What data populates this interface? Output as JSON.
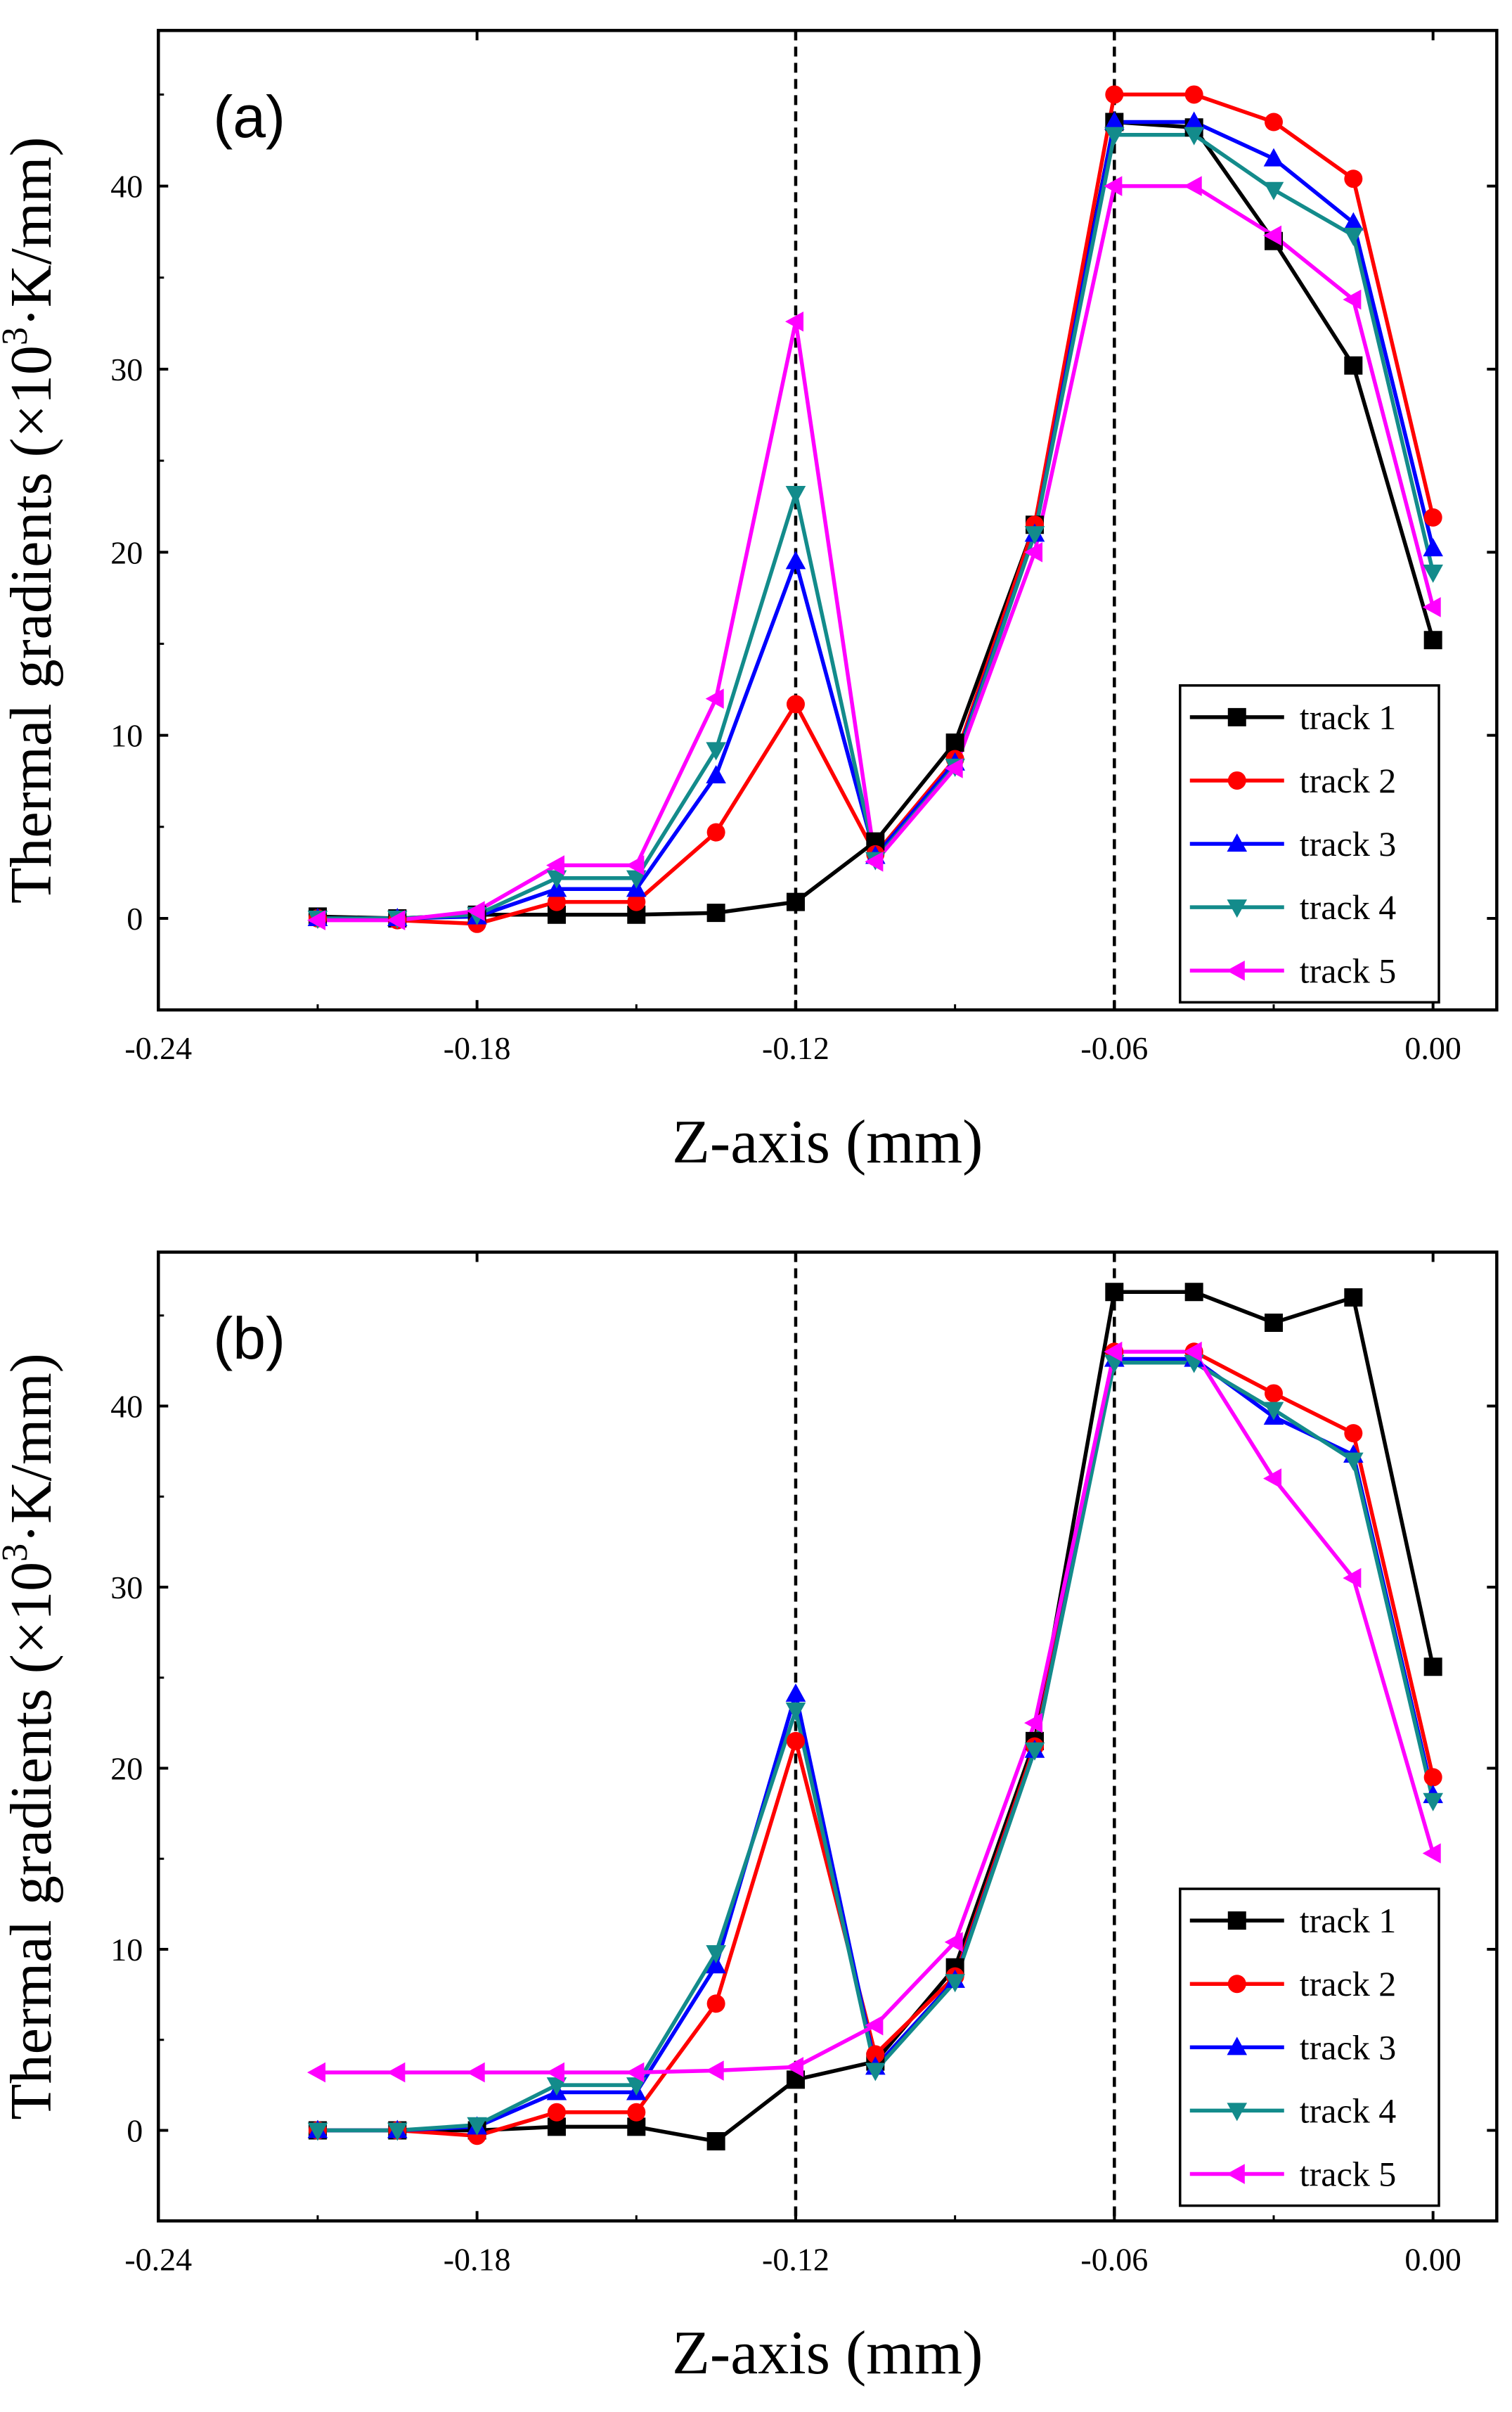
{
  "chart_data": [
    {
      "type": "line",
      "panel_label": "(a)",
      "xlabel": "Z-axis (mm)",
      "ylabel_main": "Thermal gradients (×10",
      "ylabel_sup": "3",
      "ylabel_tail": "·K/mm)",
      "xlim": [
        -0.24,
        0.012
      ],
      "ylim": [
        -5,
        48.5
      ],
      "x_ticks": [
        -0.24,
        -0.18,
        -0.12,
        -0.06,
        0.0
      ],
      "x_tick_labels": [
        "-0.24",
        "-0.18",
        "-0.12",
        "-0.06",
        "0.00"
      ],
      "y_ticks": [
        0,
        10,
        20,
        30,
        40
      ],
      "y_tick_labels": [
        "0",
        "10",
        "20",
        "30",
        "40"
      ],
      "vlines": [
        -0.12,
        -0.06
      ],
      "legend_position": "bottom-right",
      "x": [
        -0.21,
        -0.195,
        -0.18,
        -0.165,
        -0.15,
        -0.135,
        -0.12,
        -0.105,
        -0.09,
        -0.075,
        -0.06,
        -0.045,
        -0.03,
        -0.015,
        0.0
      ],
      "series": [
        {
          "name": "track 1",
          "color": "#000000",
          "marker": "square",
          "values": [
            0.1,
            0.0,
            0.2,
            0.2,
            0.2,
            0.3,
            0.9,
            4.2,
            9.6,
            21.5,
            43.5,
            43.2,
            37.0,
            30.2,
            15.2
          ]
        },
        {
          "name": "track 2",
          "color": "#ff0000",
          "marker": "circle",
          "values": [
            0.0,
            -0.1,
            -0.3,
            0.9,
            0.9,
            4.7,
            11.7,
            3.5,
            8.7,
            21.5,
            45.0,
            45.0,
            43.5,
            40.4,
            21.9
          ]
        },
        {
          "name": "track 3",
          "color": "#0000ff",
          "marker": "triangle-up",
          "values": [
            0.0,
            0.0,
            0.1,
            1.6,
            1.6,
            7.8,
            19.5,
            3.4,
            8.5,
            21.0,
            43.5,
            43.5,
            41.5,
            38.0,
            20.2
          ]
        },
        {
          "name": "track 4",
          "color": "#138b8b",
          "marker": "triangle-down",
          "values": [
            0.0,
            0.0,
            0.2,
            2.2,
            2.2,
            9.2,
            23.2,
            3.2,
            8.3,
            21.0,
            42.8,
            42.8,
            39.8,
            37.3,
            18.9
          ]
        },
        {
          "name": "track 5",
          "color": "#ff00ff",
          "marker": "triangle-left",
          "values": [
            -0.1,
            -0.1,
            0.4,
            2.9,
            2.9,
            12.0,
            32.6,
            3.1,
            8.2,
            20.0,
            40.0,
            40.0,
            37.3,
            33.8,
            17.0
          ]
        }
      ]
    },
    {
      "type": "line",
      "panel_label": "(b)",
      "xlabel": "Z-axis (mm)",
      "ylabel_main": "Thermal gradients (×10",
      "ylabel_sup": "3",
      "ylabel_tail": "·K/mm)",
      "xlim": [
        -0.24,
        0.012
      ],
      "ylim": [
        -5,
        48.5
      ],
      "x_ticks": [
        -0.24,
        -0.18,
        -0.12,
        -0.06,
        0.0
      ],
      "x_tick_labels": [
        "-0.24",
        "-0.18",
        "-0.12",
        "-0.06",
        "0.00"
      ],
      "y_ticks": [
        0,
        10,
        20,
        30,
        40
      ],
      "y_tick_labels": [
        "0",
        "10",
        "20",
        "30",
        "40"
      ],
      "vlines": [
        -0.12,
        -0.06
      ],
      "legend_position": "bottom-right",
      "x": [
        -0.21,
        -0.195,
        -0.18,
        -0.165,
        -0.15,
        -0.135,
        -0.12,
        -0.105,
        -0.09,
        -0.075,
        -0.06,
        -0.045,
        -0.03,
        -0.015,
        0.0
      ],
      "series": [
        {
          "name": "track 1",
          "color": "#000000",
          "marker": "square",
          "values": [
            0.0,
            0.0,
            0.0,
            0.2,
            0.2,
            -0.6,
            2.8,
            3.8,
            9.0,
            21.5,
            46.3,
            46.3,
            44.6,
            46.0,
            25.6
          ]
        },
        {
          "name": "track 2",
          "color": "#ff0000",
          "marker": "circle",
          "values": [
            0.0,
            0.0,
            -0.3,
            1.0,
            1.0,
            7.0,
            21.5,
            4.2,
            8.5,
            21.2,
            43.0,
            43.0,
            40.7,
            38.5,
            19.5
          ]
        },
        {
          "name": "track 3",
          "color": "#0000ff",
          "marker": "triangle-up",
          "values": [
            0.0,
            0.0,
            0.2,
            2.1,
            2.1,
            9.1,
            24.1,
            3.5,
            8.3,
            21.0,
            42.6,
            42.6,
            39.4,
            37.3,
            18.5
          ]
        },
        {
          "name": "track 4",
          "color": "#138b8b",
          "marker": "triangle-down",
          "values": [
            0.0,
            0.0,
            0.3,
            2.5,
            2.5,
            9.8,
            23.2,
            3.3,
            8.2,
            21.0,
            42.4,
            42.4,
            39.8,
            37.0,
            18.2
          ]
        },
        {
          "name": "track 5",
          "color": "#ff00ff",
          "marker": "triangle-left",
          "values": [
            3.2,
            3.2,
            3.2,
            3.2,
            3.2,
            3.3,
            3.5,
            5.8,
            10.4,
            22.5,
            43.0,
            43.0,
            36.0,
            30.5,
            15.3
          ]
        }
      ]
    }
  ]
}
